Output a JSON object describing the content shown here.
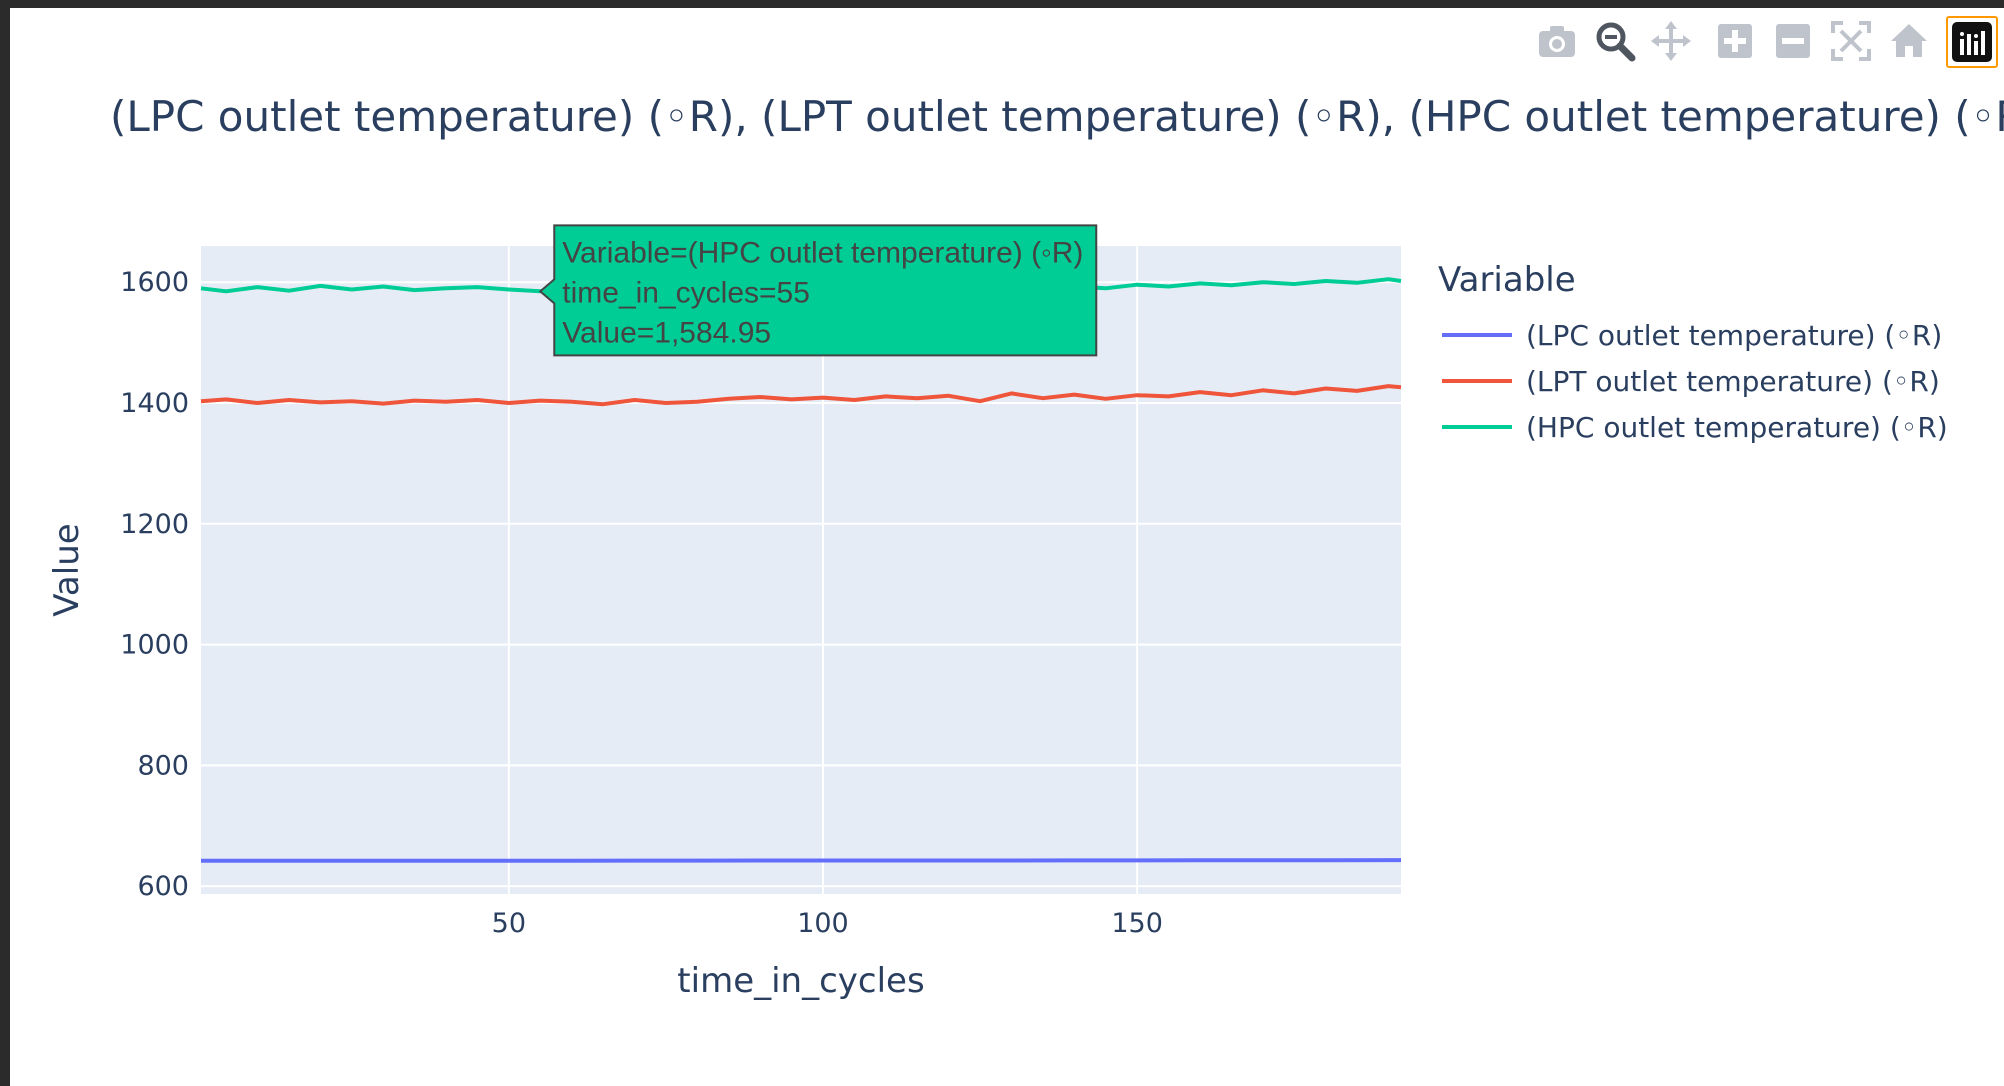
{
  "toolbar": {
    "buttons": [
      {
        "name": "camera-icon",
        "active": false
      },
      {
        "name": "zoom-icon",
        "active": true
      },
      {
        "name": "pan-icon",
        "active": false
      },
      {
        "name": "zoom-in-icon",
        "active": false
      },
      {
        "name": "zoom-out-icon",
        "active": false
      },
      {
        "name": "autoscale-icon",
        "active": false
      },
      {
        "name": "home-icon",
        "active": false
      },
      {
        "name": "plotly-logo-icon",
        "active": false
      }
    ],
    "icon_color": "#bfc4cc",
    "active_color": "#50565f"
  },
  "chart_data": {
    "type": "line",
    "title": "(LPC outlet temperature) (◦R), (LPT outlet temperature) (◦R), (HPC outlet temperature) (◦R)",
    "xlabel": "time_in_cycles",
    "ylabel": "Value",
    "xlim": [
      1,
      192
    ],
    "ylim": [
      587,
      1660
    ],
    "xticks": [
      50,
      100,
      150
    ],
    "yticks": [
      600,
      800,
      1000,
      1200,
      1400,
      1600
    ],
    "grid": true,
    "plot_background": "#e5ecf6",
    "legend": {
      "title": "Variable",
      "placement": "right",
      "entries": [
        "(LPC outlet temperature) (◦R)",
        "(LPT outlet temperature) (◦R)",
        "(HPC outlet temperature) (◦R)"
      ]
    },
    "series": [
      {
        "name": "(LPC outlet temperature) (◦R)",
        "color": "#636efa",
        "x": [
          1,
          20,
          40,
          60,
          80,
          100,
          120,
          140,
          160,
          180,
          192
        ],
        "y": [
          642.0,
          642.2,
          642.1,
          642.2,
          642.3,
          642.4,
          642.5,
          642.6,
          642.8,
          643.0,
          643.2
        ]
      },
      {
        "name": "(LPT outlet temperature) (◦R)",
        "color": "#ef553b",
        "x": [
          1,
          5,
          10,
          15,
          20,
          25,
          30,
          35,
          40,
          45,
          50,
          55,
          60,
          65,
          70,
          75,
          80,
          85,
          90,
          95,
          100,
          105,
          110,
          115,
          120,
          125,
          130,
          135,
          140,
          145,
          150,
          155,
          160,
          165,
          170,
          175,
          180,
          185,
          190,
          192
        ],
        "y": [
          1403,
          1406,
          1400,
          1405,
          1401,
          1403,
          1399,
          1404,
          1402,
          1405,
          1400,
          1404,
          1402,
          1398,
          1405,
          1400,
          1402,
          1407,
          1410,
          1406,
          1409,
          1405,
          1411,
          1408,
          1412,
          1403,
          1416,
          1408,
          1414,
          1407,
          1413,
          1411,
          1418,
          1413,
          1421,
          1416,
          1424,
          1420,
          1428,
          1426
        ]
      },
      {
        "name": "(HPC outlet temperature) (◦R)",
        "color": "#00cc96",
        "x": [
          1,
          5,
          10,
          15,
          20,
          25,
          30,
          35,
          40,
          45,
          50,
          55,
          60,
          65,
          70,
          75,
          80,
          85,
          90,
          95,
          100,
          105,
          110,
          115,
          120,
          125,
          130,
          135,
          140,
          145,
          150,
          155,
          160,
          165,
          170,
          175,
          180,
          185,
          190,
          192
        ],
        "y": [
          1590,
          1585,
          1592,
          1586,
          1594,
          1588,
          1593,
          1587,
          1590,
          1592,
          1588,
          1584.95,
          1590,
          1592,
          1588,
          1591,
          1594,
          1590,
          1593,
          1589,
          1592,
          1590,
          1594,
          1591,
          1596,
          1593,
          1595,
          1597,
          1593,
          1590,
          1596,
          1593,
          1598,
          1595,
          1600,
          1597,
          1602,
          1599,
          1605,
          1602
        ]
      }
    ],
    "hover": {
      "series_index": 2,
      "lines": [
        "Variable=(HPC outlet temperature) (◦R)",
        "time_in_cycles=55",
        "Value=1,584.95"
      ],
      "x": 55,
      "y": 1584.95
    }
  }
}
